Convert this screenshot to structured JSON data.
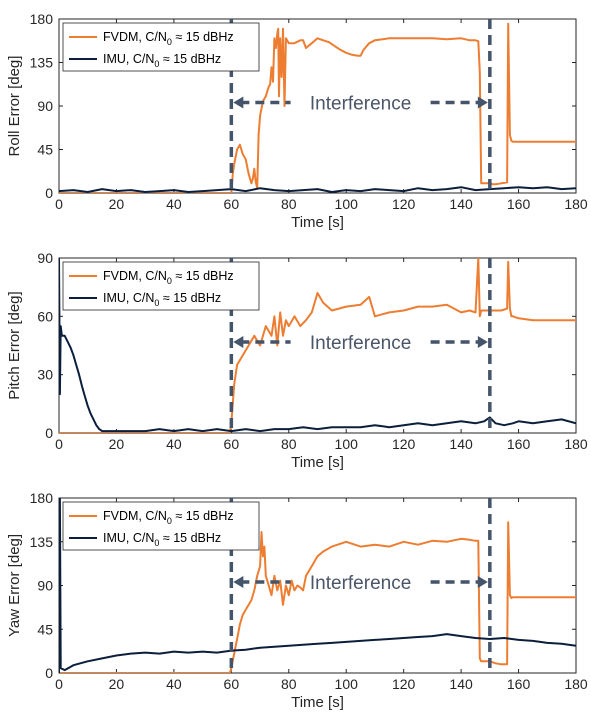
{
  "colors": {
    "fvdm": "#ED7D31",
    "imu": "#0B1E3C",
    "interference": "#44546A",
    "axis": "#262626"
  },
  "chart_data": [
    {
      "type": "line",
      "xlabel": "Time [s]",
      "ylabel": "Roll Error [deg]",
      "xlim": [
        0,
        180
      ],
      "ylim": [
        0,
        180
      ],
      "xticks": [
        "0",
        "20",
        "40",
        "60",
        "80",
        "100",
        "120",
        "140",
        "160",
        "180"
      ],
      "yticks": [
        "0",
        "45",
        "90",
        "135",
        "180"
      ],
      "legend": [
        "FVDM, C/N",
        "0",
        " ≈ 15 dBHz",
        "IMU, C/N",
        "0",
        " ≈ 15 dBHz"
      ],
      "legend_position": "top-left",
      "annotation": {
        "text": "Interference",
        "x_start": 60,
        "x_end": 150
      },
      "series": [
        {
          "name": "FVDM, C/N0 ≈ 15 dBHz",
          "x": [
            0,
            59.5,
            60,
            60.5,
            61,
            62,
            63,
            64,
            65,
            66,
            67,
            67.5,
            68,
            68.5,
            69,
            69.5,
            70,
            71,
            72,
            73,
            73.5,
            74,
            74.5,
            75,
            75.5,
            76,
            76.3,
            76.6,
            77,
            77.5,
            78,
            78.5,
            79,
            80,
            82,
            84,
            85,
            86,
            88,
            90,
            92,
            94,
            96,
            98,
            100,
            102,
            104,
            105,
            106,
            108,
            110,
            115,
            120,
            125,
            130,
            135,
            140,
            143,
            145,
            146,
            146.5,
            147,
            150,
            151,
            152,
            154,
            156,
            156.4,
            157,
            157.5,
            158,
            160,
            165,
            170,
            175,
            180
          ],
          "y": [
            0,
            0,
            0,
            20,
            30,
            45,
            50,
            40,
            35,
            20,
            10,
            15,
            25,
            12,
            5,
            60,
            80,
            95,
            100,
            110,
            112,
            130,
            115,
            160,
            150,
            165,
            170,
            100,
            160,
            120,
            170,
            90,
            160,
            155,
            155,
            158,
            158,
            150,
            155,
            160,
            158,
            156,
            152,
            148,
            145,
            143,
            142,
            142,
            148,
            155,
            158,
            160,
            160,
            160,
            160,
            159,
            160,
            158,
            158,
            157,
            125,
            10,
            10,
            9,
            9,
            10,
            11,
            175,
            60,
            54,
            53,
            53,
            53,
            53,
            53,
            53
          ]
        },
        {
          "name": "IMU, C/N0 ≈ 15 dBHz",
          "x": [
            0,
            5,
            10,
            15,
            20,
            25,
            30,
            35,
            40,
            45,
            50,
            55,
            60,
            65,
            70,
            75,
            80,
            85,
            90,
            95,
            100,
            105,
            110,
            115,
            120,
            125,
            130,
            135,
            140,
            145,
            150,
            155,
            160,
            165,
            170,
            175,
            180
          ],
          "y": [
            2,
            3,
            1,
            4,
            2,
            3,
            1,
            2,
            3,
            1,
            2,
            3,
            4,
            2,
            5,
            3,
            2,
            3,
            4,
            1,
            3,
            2,
            4,
            3,
            2,
            5,
            3,
            4,
            6,
            3,
            4,
            5,
            6,
            5,
            6,
            4,
            5
          ]
        }
      ]
    },
    {
      "type": "line",
      "xlabel": "Time [s]",
      "ylabel": "Pitch Error [deg]",
      "xlim": [
        0,
        180
      ],
      "ylim": [
        0,
        90
      ],
      "xticks": [
        "0",
        "20",
        "40",
        "60",
        "80",
        "100",
        "120",
        "140",
        "160",
        "180"
      ],
      "yticks": [
        "0",
        "30",
        "60",
        "90"
      ],
      "legend": [
        "FVDM, C/N",
        "0",
        " ≈ 15 dBHz",
        "IMU, C/N",
        "0",
        " ≈ 15 dBHz"
      ],
      "legend_position": "top-left",
      "annotation": {
        "text": "Interference",
        "x_start": 60,
        "x_end": 150
      },
      "series": [
        {
          "name": "FVDM, C/N0 ≈ 15 dBHz",
          "x": [
            0,
            59.5,
            60,
            61,
            62,
            64,
            66,
            68,
            70,
            72,
            74,
            75,
            76,
            77,
            78,
            79,
            80,
            82,
            84,
            86,
            88,
            90,
            92,
            95,
            100,
            105,
            108,
            110,
            115,
            120,
            125,
            130,
            135,
            140,
            143,
            145,
            146,
            146.5,
            147,
            150,
            152,
            154,
            156,
            156.4,
            157,
            157.5,
            158,
            160,
            165,
            170,
            175,
            180
          ],
          "y": [
            0,
            0,
            5,
            25,
            35,
            40,
            45,
            50,
            45,
            55,
            50,
            60,
            45,
            62,
            50,
            58,
            55,
            60,
            55,
            58,
            62,
            72,
            67,
            63,
            65,
            66,
            70,
            60,
            62,
            63,
            65,
            65,
            66,
            62,
            63,
            62,
            90,
            60,
            63,
            63,
            63,
            63,
            64,
            88,
            64,
            60,
            60,
            59,
            58,
            58,
            58,
            58
          ]
        },
        {
          "name": "IMU, C/N0 ≈ 15 dBHz",
          "x": [
            0,
            0.3,
            0.6,
            1,
            2,
            3,
            4,
            5,
            6,
            7,
            8,
            9,
            10,
            11,
            12,
            13,
            14,
            15,
            20,
            25,
            30,
            35,
            40,
            45,
            50,
            55,
            60,
            65,
            70,
            75,
            80,
            85,
            90,
            95,
            100,
            105,
            110,
            115,
            120,
            125,
            130,
            135,
            140,
            145,
            148,
            150,
            152,
            155,
            158,
            160,
            165,
            170,
            175,
            180
          ],
          "y": [
            90,
            20,
            55,
            50,
            50,
            47,
            44,
            40,
            35,
            30,
            24,
            19,
            14,
            10,
            7,
            4,
            2,
            1,
            1,
            1,
            1,
            2,
            1,
            2,
            1,
            2,
            1,
            2,
            1,
            2,
            2,
            3,
            2,
            3,
            3,
            3,
            4,
            3,
            4,
            5,
            4,
            5,
            6,
            5,
            6,
            8,
            5,
            4,
            5,
            6,
            5,
            6,
            7,
            5
          ]
        }
      ]
    },
    {
      "type": "line",
      "xlabel": "Time [s]",
      "ylabel": "Yaw Error [deg]",
      "xlim": [
        0,
        180
      ],
      "ylim": [
        0,
        180
      ],
      "xticks": [
        "0",
        "20",
        "40",
        "60",
        "80",
        "100",
        "120",
        "140",
        "160",
        "180"
      ],
      "yticks": [
        "0",
        "45",
        "90",
        "135",
        "180"
      ],
      "legend": [
        "FVDM, C/N",
        "0",
        " ≈ 15 dBHz",
        "IMU, C/N",
        "0",
        " ≈ 15 dBHz"
      ],
      "legend_position": "top-left",
      "annotation": {
        "text": "Interference",
        "x_start": 60,
        "x_end": 150
      },
      "series": [
        {
          "name": "FVDM, C/N0 ≈ 15 dBHz",
          "x": [
            0,
            59.5,
            60,
            61,
            62,
            63,
            64,
            65,
            66,
            67,
            68,
            69,
            70,
            70.5,
            71,
            71.5,
            72,
            73,
            74,
            75,
            76,
            77,
            78,
            79,
            80,
            81,
            82,
            83,
            84,
            85,
            86,
            88,
            90,
            92,
            95,
            100,
            105,
            110,
            115,
            120,
            125,
            130,
            135,
            140,
            143,
            145,
            146,
            146.5,
            147,
            150,
            152,
            154,
            156,
            156.4,
            157,
            157.5,
            158,
            160,
            165,
            170,
            175,
            180
          ],
          "y": [
            0,
            0,
            5,
            20,
            35,
            50,
            60,
            65,
            70,
            75,
            85,
            100,
            110,
            145,
            120,
            130,
            100,
            90,
            80,
            100,
            85,
            95,
            70,
            90,
            80,
            95,
            85,
            90,
            88,
            85,
            100,
            110,
            120,
            125,
            130,
            135,
            130,
            132,
            130,
            135,
            132,
            136,
            135,
            138,
            137,
            136,
            136,
            15,
            12,
            12,
            10,
            9,
            9,
            155,
            80,
            77,
            78,
            78,
            78,
            78,
            78,
            78
          ]
        },
        {
          "name": "IMU, C/N0 ≈ 15 dBHz",
          "x": [
            0,
            0.3,
            0.6,
            2,
            5,
            10,
            15,
            20,
            25,
            30,
            35,
            40,
            45,
            50,
            55,
            60,
            65,
            70,
            75,
            80,
            85,
            90,
            95,
            100,
            105,
            110,
            115,
            120,
            125,
            130,
            135,
            140,
            145,
            150,
            155,
            160,
            165,
            170,
            175,
            180
          ],
          "y": [
            0,
            180,
            5,
            3,
            8,
            12,
            15,
            18,
            20,
            21,
            20,
            22,
            21,
            22,
            21,
            23,
            24,
            26,
            27,
            28,
            29,
            30,
            31,
            32,
            33,
            34,
            35,
            36,
            37,
            38,
            40,
            38,
            36,
            35,
            36,
            34,
            33,
            31,
            30,
            28
          ]
        }
      ]
    }
  ]
}
